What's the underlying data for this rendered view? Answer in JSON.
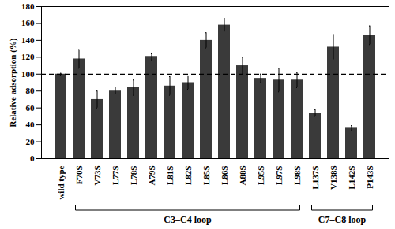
{
  "chart_data": {
    "type": "bar",
    "y_label": "Relative adsorption (%)",
    "categories": [
      "wild type",
      "F70S",
      "V73S",
      "L77S",
      "L78S",
      "A79S",
      "L81S",
      "L82S",
      "L85S",
      "L86S",
      "A88S",
      "L95S",
      "L97S",
      "L98S",
      "L137S",
      "V138S",
      "L142S",
      "P143S"
    ],
    "values": [
      100,
      118,
      70,
      80,
      84,
      121,
      86,
      90,
      140,
      158,
      110,
      95,
      93,
      93,
      54,
      132,
      36,
      146
    ],
    "errors": [
      1,
      11,
      10,
      4,
      9,
      4,
      11,
      8,
      9,
      8,
      10,
      5,
      14,
      9,
      4,
      15,
      3,
      11
    ],
    "color": "#3a3a3a",
    "reference_line": 100,
    "groups": [
      {
        "label": "C3–C4 loop",
        "from": "F70S",
        "to": "L98S"
      },
      {
        "label": "C7–C8 loop",
        "from": "L137S",
        "to": "P143S"
      }
    ],
    "ylim": [
      0,
      180
    ],
    "yticks": [
      0,
      20,
      40,
      60,
      80,
      100,
      120,
      140,
      160,
      180
    ],
    "grid": false
  }
}
